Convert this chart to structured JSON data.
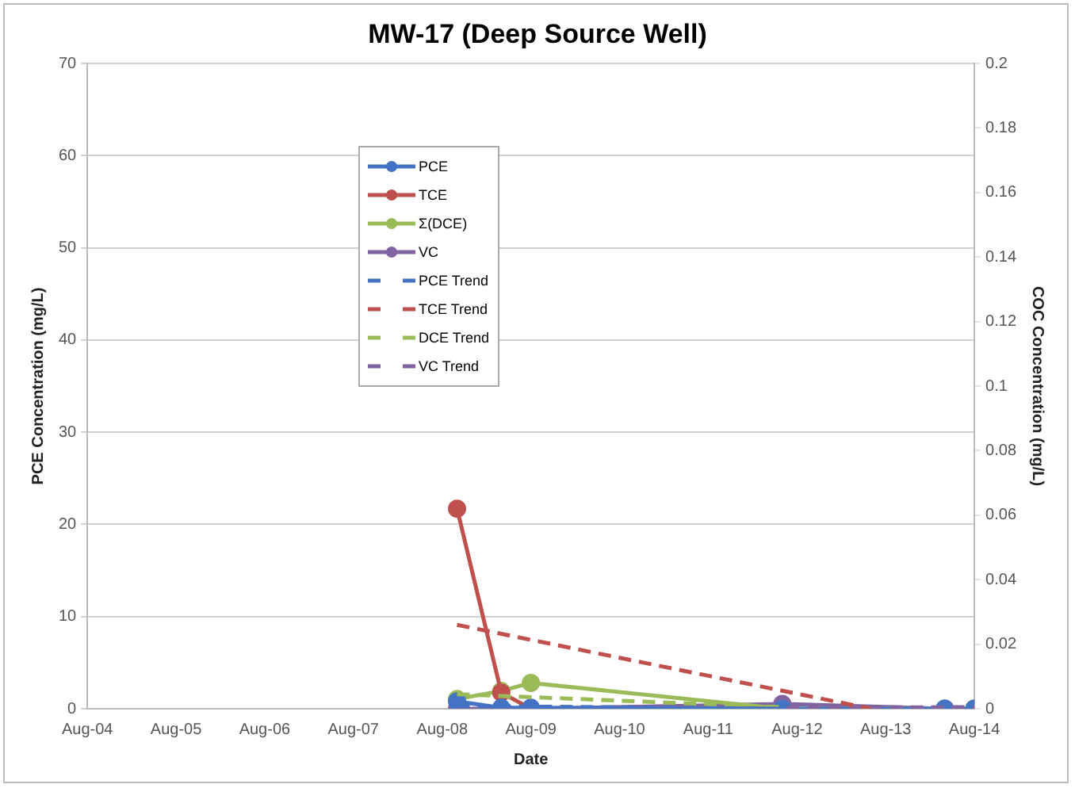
{
  "chart_data": {
    "type": "line",
    "title": "MW-17 (Deep Source Well)",
    "xlabel": "Date",
    "ylabel": "PCE Concentration (mg/L)",
    "y2label": "COC Concentration (mg/L)",
    "xlim": [
      "2004-08",
      "2014-08"
    ],
    "xticks": [
      {
        "value": "2004-08",
        "label": "Aug-04"
      },
      {
        "value": "2005-08",
        "label": "Aug-05"
      },
      {
        "value": "2006-08",
        "label": "Aug-06"
      },
      {
        "value": "2007-08",
        "label": "Aug-07"
      },
      {
        "value": "2008-08",
        "label": "Aug-08"
      },
      {
        "value": "2009-08",
        "label": "Aug-09"
      },
      {
        "value": "2010-08",
        "label": "Aug-10"
      },
      {
        "value": "2011-08",
        "label": "Aug-11"
      },
      {
        "value": "2012-08",
        "label": "Aug-12"
      },
      {
        "value": "2013-08",
        "label": "Aug-13"
      },
      {
        "value": "2014-08",
        "label": "Aug-14"
      }
    ],
    "ylim": [
      0,
      70
    ],
    "yticks": [
      0,
      10,
      20,
      30,
      40,
      50,
      60,
      70
    ],
    "y2lim": [
      0,
      0.2
    ],
    "y2ticks": [
      0,
      0.02,
      0.04,
      0.06,
      0.08,
      0.1,
      0.12,
      0.14,
      0.16,
      0.18,
      0.2
    ],
    "grid": "y",
    "legend": "top left",
    "series": [
      {
        "name": "PCE",
        "color": "#4472c4",
        "marker": "circle",
        "line_style": "solid",
        "x": [
          "2008-10",
          "2009-04",
          "2009-08",
          "2012-06",
          "2014-04",
          "2014-08"
        ],
        "values": [
          0.8,
          0.1,
          0.1,
          0,
          0,
          0
        ]
      },
      {
        "name": "TCE",
        "color": "#c0504d",
        "marker": "circle",
        "line_style": "solid",
        "axis": "y2",
        "x": [
          "2008-10",
          "2009-04",
          "2009-08",
          "2012-06"
        ],
        "values": [
          0.062,
          0.005,
          0,
          0
        ]
      },
      {
        "name": "Σ(DCE)",
        "color": "#9bbb59",
        "marker": "circle",
        "line_style": "solid",
        "axis": "y2",
        "x": [
          "2008-10",
          "2009-04",
          "2009-08",
          "2012-06",
          "2014-04",
          "2014-08"
        ],
        "values": [
          0.003,
          0.0055,
          0.008,
          0,
          0,
          0
        ]
      },
      {
        "name": "VC",
        "color": "#8064a2",
        "marker": "circle",
        "line_style": "solid",
        "axis": "y2",
        "x": [
          "2008-10",
          "2009-04",
          "2009-08",
          "2012-06",
          "2014-04",
          "2014-08"
        ],
        "values": [
          0,
          0,
          0,
          0.0015,
          0,
          0
        ]
      },
      {
        "name": "PCE Trend",
        "color": "#4472c4",
        "marker": "none",
        "line_style": "dashed",
        "x": [
          "2008-10",
          "2012-06"
        ],
        "values": [
          0.3,
          0
        ]
      },
      {
        "name": "TCE Trend",
        "color": "#c0504d",
        "marker": "none",
        "line_style": "dashed",
        "axis": "y2",
        "x": [
          "2008-10",
          "2013-06"
        ],
        "values": [
          0.026,
          0
        ]
      },
      {
        "name": "DCE Trend",
        "color": "#9bbb59",
        "marker": "none",
        "line_style": "dashed",
        "axis": "y2",
        "x": [
          "2008-10",
          "2012-06"
        ],
        "values": [
          0.0045,
          0.0005
        ]
      },
      {
        "name": "VC Trend",
        "color": "#8064a2",
        "marker": "none",
        "line_style": "dashed",
        "axis": "y2",
        "x": [
          "2008-10",
          "2014-08"
        ],
        "values": [
          0,
          0.0005
        ]
      }
    ]
  }
}
